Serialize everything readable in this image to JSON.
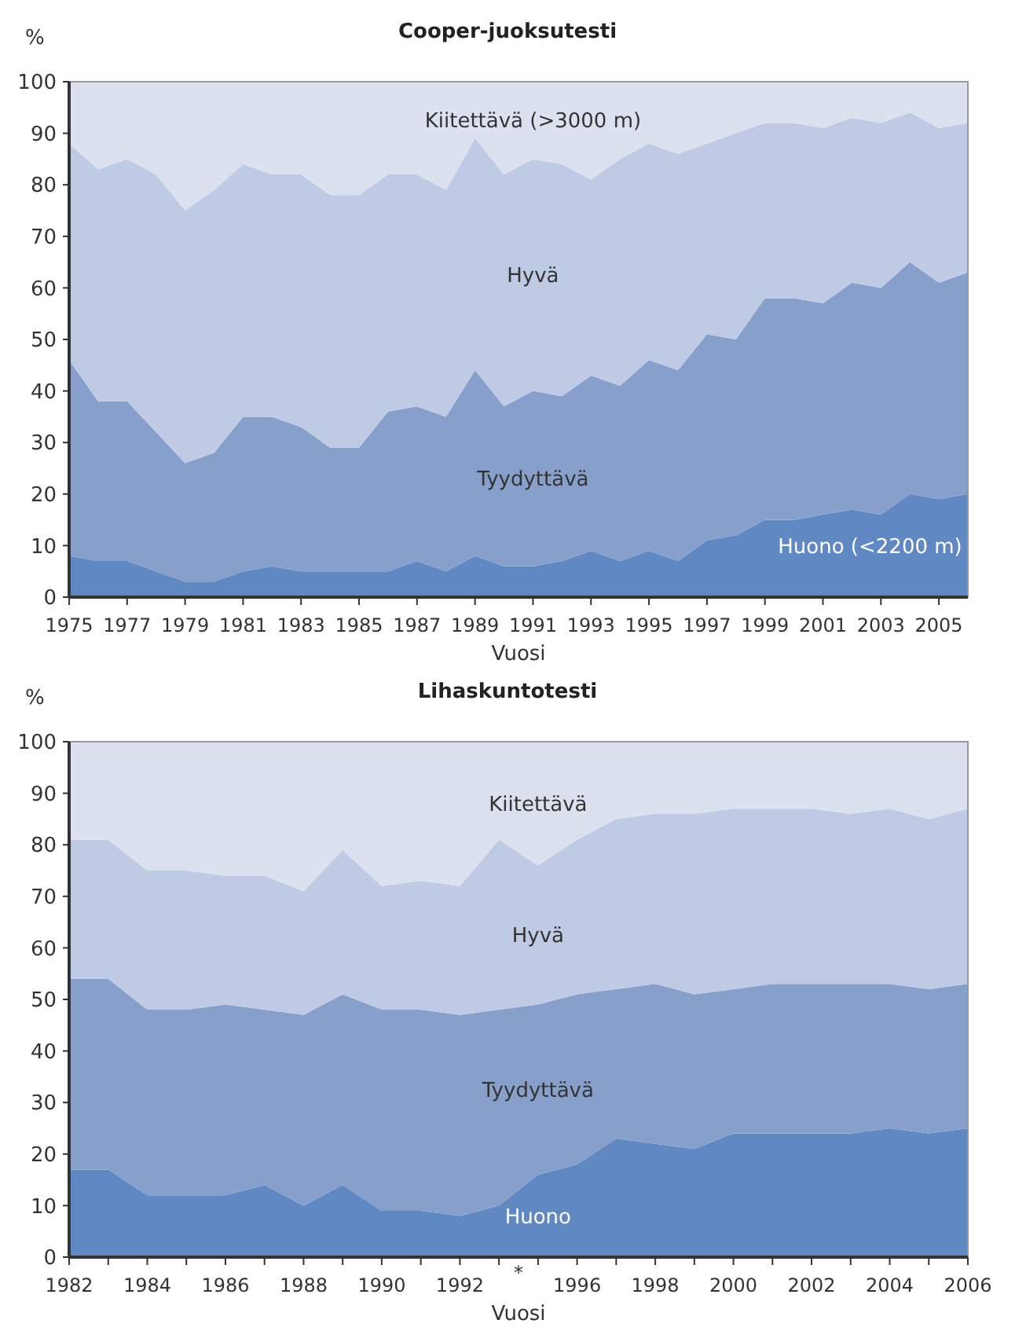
{
  "chart_data": [
    {
      "type": "area",
      "stacked": true,
      "title": "Cooper-juoksutesti",
      "xlabel": "Vuosi",
      "ylabel": "%",
      "x": [
        1975,
        1976,
        1977,
        1978,
        1979,
        1980,
        1981,
        1982,
        1983,
        1984,
        1985,
        1986,
        1987,
        1988,
        1989,
        1990,
        1991,
        1992,
        1993,
        1994,
        1995,
        1996,
        1997,
        1998,
        1999,
        2000,
        2001,
        2002,
        2003,
        2004,
        2005,
        2006
      ],
      "xlim": [
        1975,
        2006
      ],
      "xticks": [
        1975,
        1977,
        1979,
        1981,
        1983,
        1985,
        1987,
        1989,
        1991,
        1993,
        1995,
        1997,
        1999,
        2001,
        2003,
        2005
      ],
      "ylim": [
        0,
        100
      ],
      "yticks": [
        0,
        10,
        20,
        30,
        40,
        50,
        60,
        70,
        80,
        90,
        100
      ],
      "series": [
        {
          "name": "Huono (<2200 m)",
          "color": "#6089c3",
          "values": [
            8,
            7,
            7,
            5,
            3,
            3,
            5,
            6,
            5,
            5,
            5,
            5,
            7,
            5,
            8,
            6,
            6,
            7,
            9,
            7,
            9,
            7,
            11,
            12,
            15,
            15,
            16,
            17,
            16,
            20,
            19,
            20
          ]
        },
        {
          "name": "Tyydyttävä",
          "color": "#87a0cb",
          "values": [
            38,
            31,
            31,
            27,
            23,
            25,
            30,
            29,
            28,
            24,
            24,
            31,
            30,
            30,
            36,
            31,
            34,
            32,
            34,
            34,
            37,
            37,
            40,
            38,
            43,
            43,
            41,
            44,
            44,
            45,
            42,
            43
          ]
        },
        {
          "name": "Hyvä",
          "color": "#bfcae4",
          "values": [
            42,
            45,
            47,
            50,
            49,
            51,
            49,
            47,
            49,
            49,
            49,
            46,
            45,
            44,
            45,
            45,
            45,
            45,
            38,
            44,
            42,
            42,
            37,
            40,
            34,
            34,
            34,
            32,
            32,
            29,
            30,
            29
          ]
        },
        {
          "name": "Kiitettävä (>3000 m)",
          "color": "#dce1ef",
          "values": [
            12,
            17,
            15,
            18,
            25,
            21,
            16,
            18,
            18,
            22,
            22,
            18,
            18,
            21,
            11,
            18,
            15,
            16,
            19,
            15,
            12,
            14,
            12,
            10,
            8,
            8,
            9,
            7,
            8,
            6,
            9,
            8
          ]
        }
      ]
    },
    {
      "type": "area",
      "stacked": true,
      "title": "Lihaskuntotesti",
      "xlabel": "Vuosi",
      "ylabel": "%",
      "categories": [
        "1982",
        null,
        "1984",
        null,
        "1986",
        null,
        "1988",
        null,
        "1990",
        null,
        "1992",
        null,
        null,
        "1996",
        null,
        "1998",
        null,
        "2000",
        null,
        "2002",
        null,
        "2004",
        null,
        "2006"
      ],
      "ylim": [
        0,
        100
      ],
      "yticks": [
        0,
        10,
        20,
        30,
        40,
        50,
        60,
        70,
        80,
        90,
        100
      ],
      "annotations": [
        "*"
      ],
      "series": [
        {
          "name": "Huono",
          "color": "#6089c3",
          "values": [
            17,
            17,
            12,
            12,
            12,
            14,
            10,
            14,
            9,
            9,
            8,
            10,
            16,
            18,
            23,
            22,
            21,
            24,
            24,
            24,
            24,
            25,
            24,
            25
          ]
        },
        {
          "name": "Tyydyttävä",
          "color": "#87a0cb",
          "values": [
            37,
            37,
            36,
            36,
            37,
            34,
            37,
            37,
            39,
            39,
            39,
            38,
            33,
            33,
            29,
            31,
            30,
            28,
            29,
            29,
            29,
            28,
            28,
            28
          ]
        },
        {
          "name": "Hyvä",
          "color": "#bfcae4",
          "values": [
            27,
            27,
            27,
            27,
            25,
            26,
            24,
            28,
            24,
            25,
            25,
            33,
            27,
            30,
            33,
            33,
            35,
            35,
            34,
            34,
            33,
            34,
            33,
            34
          ]
        },
        {
          "name": "Kiitettävä",
          "color": "#dce1ef",
          "values": [
            19,
            19,
            25,
            25,
            26,
            26,
            29,
            21,
            28,
            27,
            28,
            19,
            24,
            19,
            15,
            14,
            14,
            13,
            13,
            13,
            14,
            13,
            15,
            13
          ]
        }
      ]
    }
  ]
}
